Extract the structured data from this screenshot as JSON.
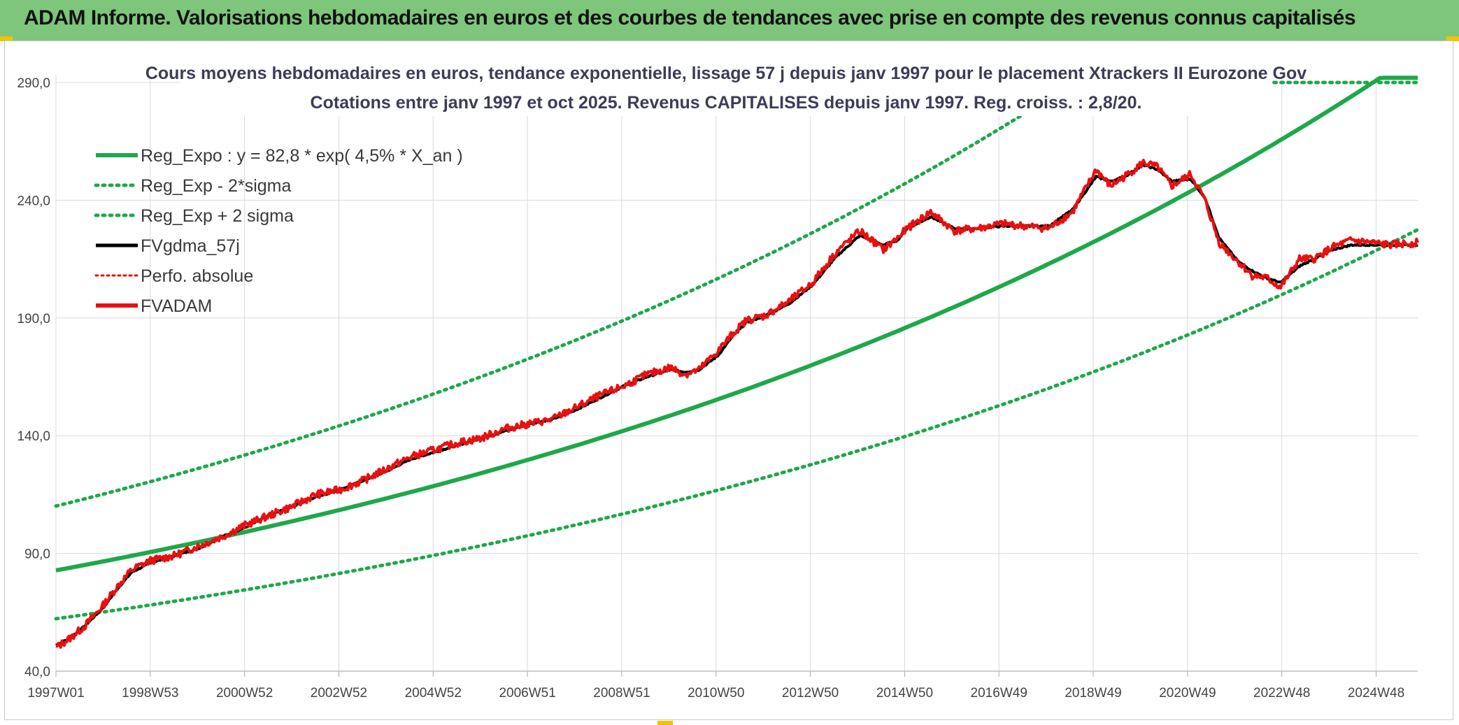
{
  "header": {
    "title": "ADAM Informe. Valorisations hebdomadaires en euros et des courbes de tendances avec prise en compte des revenus connus capitalisés"
  },
  "colors": {
    "banner": "#7dc67b",
    "trend": "#1ea84a",
    "smooth": "#000000",
    "price": "#e81010",
    "grid": "#d9d9d9"
  },
  "chart_data": {
    "type": "line",
    "title": "Cours moyens hebdomadaires en euros, tendance exponentielle, lissage 57 j depuis janv 1997 pour le placement Xtrackers II Eurozone Gov",
    "subtitle": "Cotations entre janv 1997 et oct 2025. Revenus CAPITALISES depuis janv 1997. Reg. croiss. : 2,8/20.",
    "xlabel": "",
    "ylabel": "",
    "ylim": [
      40,
      290
    ],
    "yticks": [
      "40,0",
      "90,0",
      "140,0",
      "190,0",
      "240,0",
      "290,0"
    ],
    "xticks": [
      "1997W01",
      "1998W53",
      "2000W52",
      "2002W52",
      "2004W52",
      "2006W51",
      "2008W51",
      "2010W50",
      "2012W50",
      "2014W50",
      "2016W49",
      "2018W49",
      "2020W49",
      "2022W48",
      "2024W48"
    ],
    "xrange": [
      1997.0,
      2025.8
    ],
    "grid": true,
    "legend_position": "top-left",
    "legend": [
      "Reg_Expo : y = 82,8 * exp( 4,5% *  X_an )",
      "Reg_Exp - 2*sigma",
      "Reg_Exp + 2 sigma",
      "FVgdma_57j",
      "Perfo. absolue",
      "FVADAM"
    ],
    "trend": {
      "a": 82.8,
      "rate": 0.045,
      "sigma_factor": 1.33
    },
    "series": [
      {
        "name": "FVADAM",
        "x": [
          1997.0,
          1997.3,
          1997.6,
          1998.0,
          1998.3,
          1998.6,
          1999.0,
          1999.5,
          2000.0,
          2000.5,
          2001.0,
          2001.5,
          2002.0,
          2002.5,
          2003.0,
          2003.5,
          2004.0,
          2004.5,
          2005.0,
          2005.5,
          2006.0,
          2006.5,
          2007.0,
          2007.5,
          2008.0,
          2008.5,
          2009.0,
          2009.5,
          2010.0,
          2010.3,
          2010.6,
          2011.0,
          2011.3,
          2011.6,
          2012.0,
          2012.5,
          2013.0,
          2013.5,
          2014.0,
          2014.5,
          2014.8,
          2015.0,
          2015.5,
          2016.0,
          2016.5,
          2017.0,
          2017.5,
          2018.0,
          2018.5,
          2019.0,
          2019.3,
          2019.6,
          2020.0,
          2020.3,
          2020.6,
          2021.0,
          2021.3,
          2021.6,
          2022.0,
          2022.3,
          2022.6,
          2022.9,
          2023.3,
          2023.6,
          2024.0,
          2024.4,
          2024.8,
          2025.2,
          2025.8
        ],
        "values": [
          50,
          54,
          59,
          68,
          76,
          83,
          87,
          89,
          93,
          97,
          102,
          106,
          110,
          115,
          117,
          121,
          126,
          131,
          134,
          137,
          139,
          143,
          145,
          147,
          152,
          157,
          161,
          166,
          169,
          166,
          168,
          176,
          183,
          189,
          191,
          197,
          205,
          218,
          227,
          219,
          224,
          228,
          235,
          227,
          228,
          230,
          229,
          228,
          235,
          253,
          246,
          250,
          256,
          254,
          246,
          251,
          240,
          222,
          214,
          208,
          207,
          203,
          215,
          215,
          220,
          223,
          222,
          221,
          222
        ]
      },
      {
        "name": "FVgdma_57j",
        "x": [
          1997.0,
          1997.3,
          1997.6,
          1998.0,
          1998.3,
          1998.6,
          1999.0,
          1999.5,
          2000.0,
          2000.5,
          2001.0,
          2001.5,
          2002.0,
          2002.5,
          2003.0,
          2003.5,
          2004.0,
          2004.5,
          2005.0,
          2005.5,
          2006.0,
          2006.5,
          2007.0,
          2007.5,
          2008.0,
          2008.5,
          2009.0,
          2009.5,
          2010.0,
          2010.3,
          2010.6,
          2011.0,
          2011.3,
          2011.6,
          2012.0,
          2012.5,
          2013.0,
          2013.5,
          2014.0,
          2014.5,
          2014.8,
          2015.0,
          2015.5,
          2016.0,
          2016.5,
          2017.0,
          2017.5,
          2018.0,
          2018.5,
          2019.0,
          2019.3,
          2019.6,
          2020.0,
          2020.3,
          2020.6,
          2021.0,
          2021.3,
          2021.6,
          2022.0,
          2022.3,
          2022.6,
          2022.9,
          2023.3,
          2023.6,
          2024.0,
          2024.4,
          2024.8,
          2025.2,
          2025.8
        ],
        "values": [
          51,
          54,
          59,
          67,
          75,
          82,
          86,
          89,
          92,
          97,
          101,
          106,
          110,
          114,
          117,
          121,
          125,
          130,
          133,
          136,
          139,
          142,
          145,
          147,
          151,
          156,
          161,
          165,
          168,
          167,
          168,
          174,
          182,
          188,
          191,
          196,
          204,
          216,
          225,
          221,
          223,
          228,
          233,
          228,
          228,
          229,
          229,
          229,
          236,
          250,
          248,
          250,
          255,
          253,
          248,
          249,
          241,
          224,
          214,
          210,
          207,
          205,
          212,
          215,
          219,
          221,
          221,
          221,
          221
        ]
      }
    ]
  }
}
